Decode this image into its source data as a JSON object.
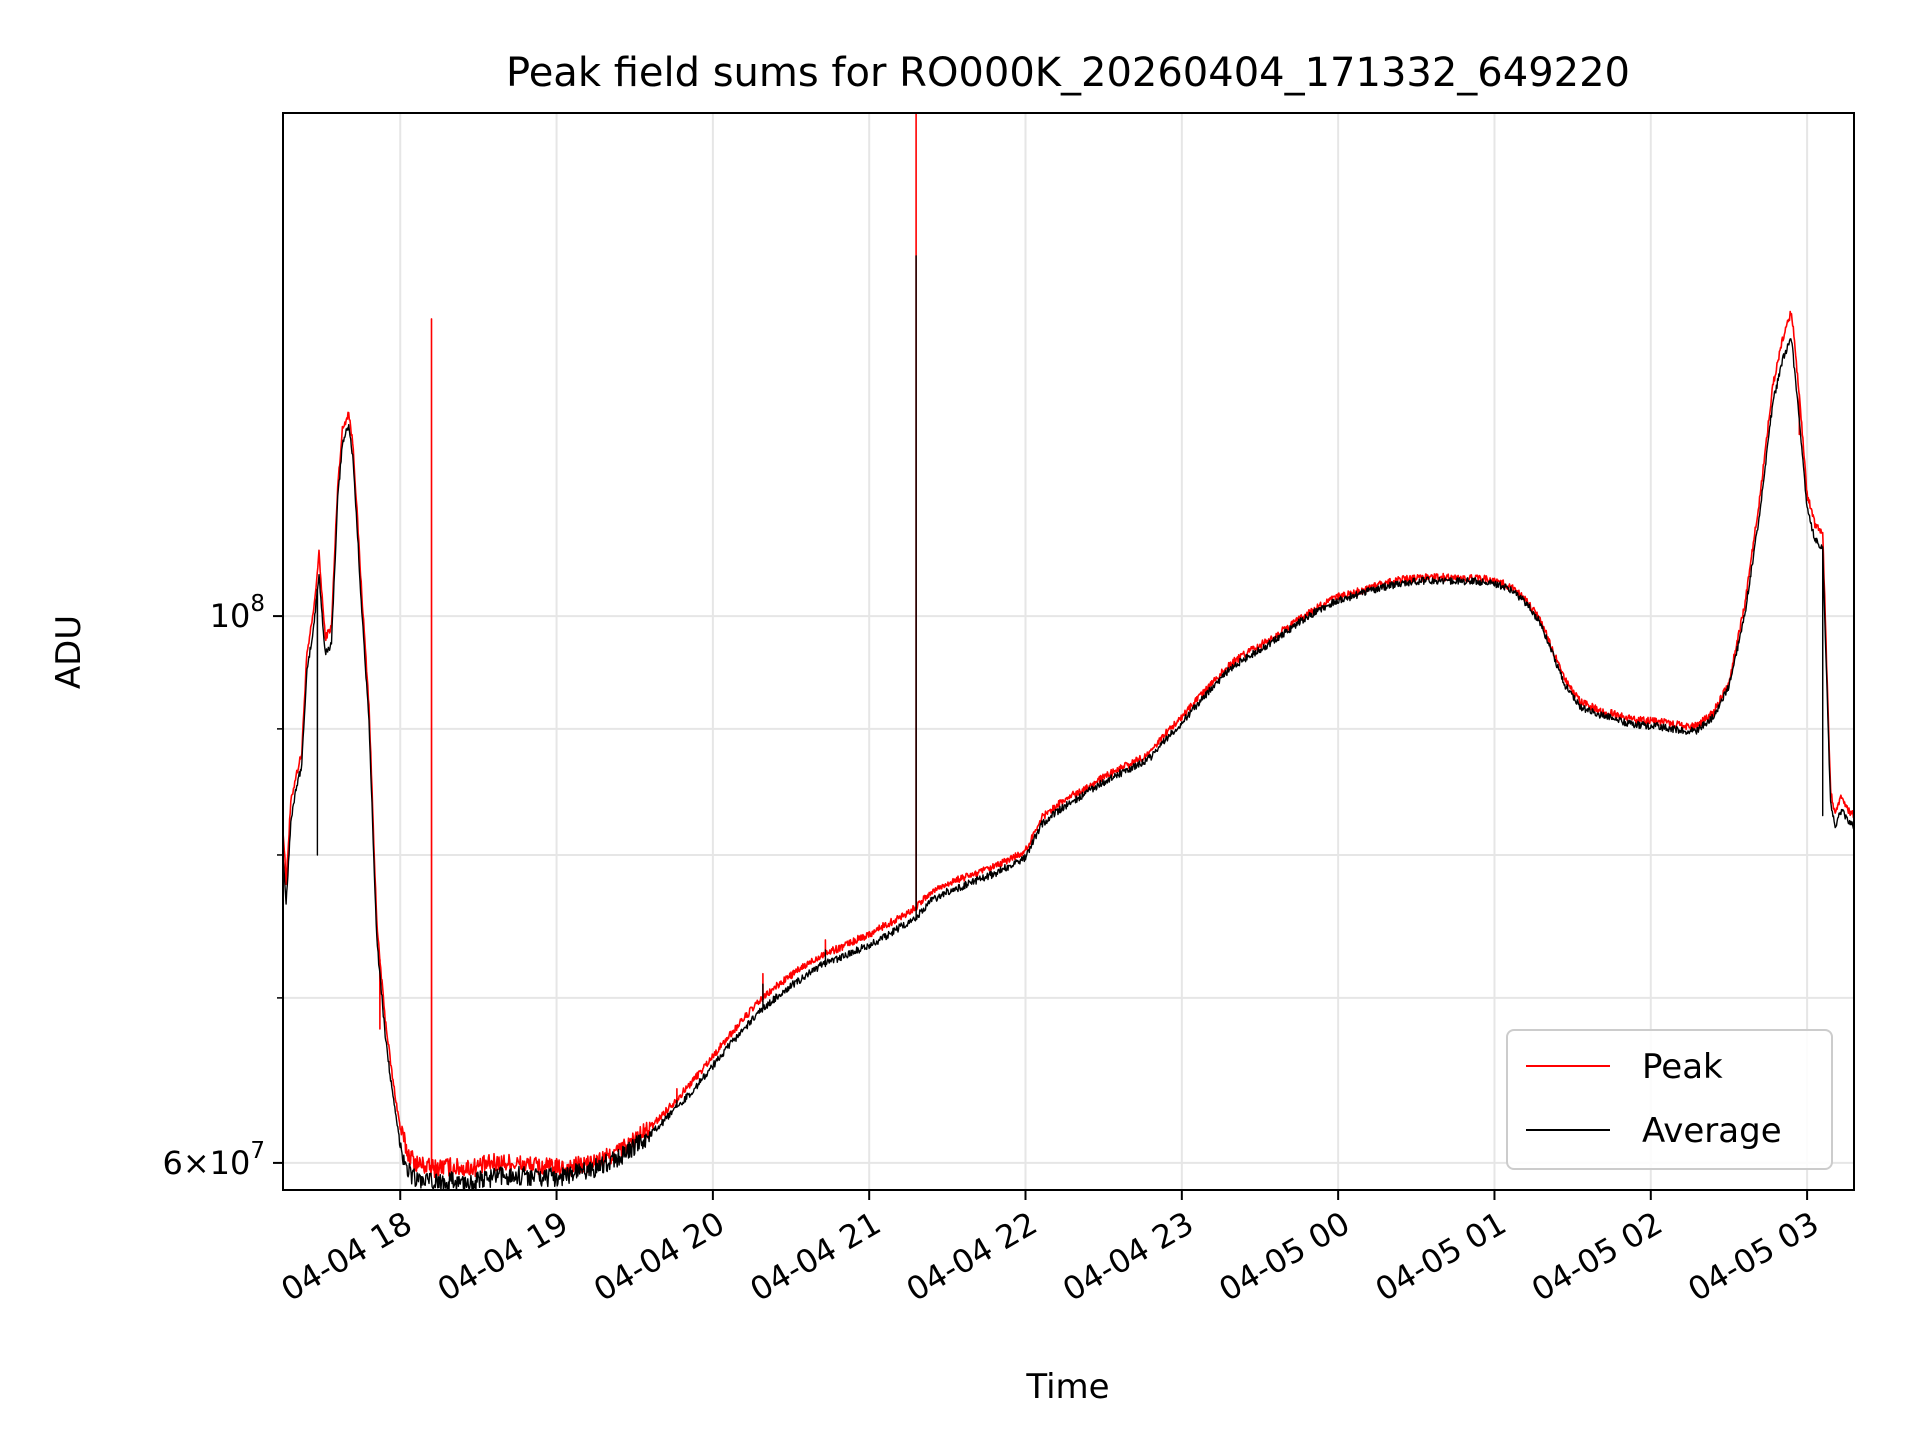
{
  "chart_data": {
    "type": "line",
    "title": "Peak field sums for RO000K_20260404_171332_649220",
    "xlabel": "Time",
    "ylabel": "ADU",
    "yscale": "log",
    "xlim": [
      17.25,
      27.3
    ],
    "ylim": [
      58500000,
      160000000
    ],
    "grid": true,
    "legend_position": "lower-right",
    "x_unit": "hours since 2026-04-04 00:00",
    "x_ticks": [
      {
        "value": 18,
        "label": "04-04 18"
      },
      {
        "value": 19,
        "label": "04-04 19"
      },
      {
        "value": 20,
        "label": "04-04 20"
      },
      {
        "value": 21,
        "label": "04-04 21"
      },
      {
        "value": 22,
        "label": "04-04 22"
      },
      {
        "value": 23,
        "label": "04-04 23"
      },
      {
        "value": 24,
        "label": "04-05 00"
      },
      {
        "value": 25,
        "label": "04-05 01"
      },
      {
        "value": 26,
        "label": "04-05 02"
      },
      {
        "value": 27,
        "label": "04-05 03"
      }
    ],
    "y_major_ticks": [
      {
        "value": 100000000,
        "base": "10",
        "exp": "8"
      },
      {
        "value": 60000000,
        "mantissa": "6",
        "base": "10",
        "exp": "7"
      }
    ],
    "y_minor_gridlines": [
      70000000,
      80000000,
      90000000,
      200000000
    ],
    "series": [
      {
        "name": "Peak",
        "color": "#ff0000",
        "points": [
          [
            17.25,
            82000000
          ],
          [
            17.27,
            78000000
          ],
          [
            17.3,
            84000000
          ],
          [
            17.33,
            86000000
          ],
          [
            17.37,
            88000000
          ],
          [
            17.4,
            96000000
          ],
          [
            17.45,
            101000000
          ],
          [
            17.48,
            106000000
          ],
          [
            17.52,
            98000000
          ],
          [
            17.56,
            99000000
          ],
          [
            17.6,
            113000000
          ],
          [
            17.63,
            119000000
          ],
          [
            17.67,
            121000000
          ],
          [
            17.7,
            117000000
          ],
          [
            17.75,
            103000000
          ],
          [
            17.8,
            92000000
          ],
          [
            17.85,
            75000000
          ],
          [
            17.9,
            69000000
          ],
          [
            17.95,
            65000000
          ],
          [
            18.0,
            62000000
          ],
          [
            18.05,
            60500000
          ],
          [
            18.1,
            60000000
          ],
          [
            18.2,
            59700000
          ],
          [
            18.3,
            59800000
          ],
          [
            18.4,
            59700000
          ],
          [
            18.5,
            59800000
          ],
          [
            18.6,
            60000000
          ],
          [
            18.7,
            60000000
          ],
          [
            18.8,
            59900000
          ],
          [
            18.9,
            59800000
          ],
          [
            19.0,
            59700000
          ],
          [
            19.1,
            59800000
          ],
          [
            19.2,
            59900000
          ],
          [
            19.3,
            60200000
          ],
          [
            19.4,
            60700000
          ],
          [
            19.5,
            61300000
          ],
          [
            19.6,
            62000000
          ],
          [
            19.7,
            63000000
          ],
          [
            19.8,
            64000000
          ],
          [
            19.9,
            65100000
          ],
          [
            20.0,
            66300000
          ],
          [
            20.1,
            67500000
          ],
          [
            20.2,
            68700000
          ],
          [
            20.3,
            69800000
          ],
          [
            20.4,
            70700000
          ],
          [
            20.5,
            71500000
          ],
          [
            20.6,
            72200000
          ],
          [
            20.7,
            72900000
          ],
          [
            20.8,
            73300000
          ],
          [
            20.9,
            73800000
          ],
          [
            21.0,
            74300000
          ],
          [
            21.1,
            74900000
          ],
          [
            21.2,
            75500000
          ],
          [
            21.3,
            76200000
          ],
          [
            21.4,
            77300000
          ],
          [
            21.5,
            77900000
          ],
          [
            21.6,
            78300000
          ],
          [
            21.7,
            78700000
          ],
          [
            21.8,
            79100000
          ],
          [
            21.9,
            79700000
          ],
          [
            22.0,
            80300000
          ],
          [
            22.1,
            82800000
          ],
          [
            22.2,
            83800000
          ],
          [
            22.3,
            84600000
          ],
          [
            22.4,
            85300000
          ],
          [
            22.5,
            86000000
          ],
          [
            22.6,
            86700000
          ],
          [
            22.7,
            87300000
          ],
          [
            22.8,
            88000000
          ],
          [
            22.9,
            89700000
          ],
          [
            23.0,
            91000000
          ],
          [
            23.1,
            92500000
          ],
          [
            23.2,
            94000000
          ],
          [
            23.3,
            95500000
          ],
          [
            23.4,
            96500000
          ],
          [
            23.5,
            97300000
          ],
          [
            23.6,
            98200000
          ],
          [
            23.7,
            99200000
          ],
          [
            23.8,
            100200000
          ],
          [
            23.9,
            101100000
          ],
          [
            24.0,
            101800000
          ],
          [
            24.1,
            102200000
          ],
          [
            24.2,
            102700000
          ],
          [
            24.3,
            103100000
          ],
          [
            24.4,
            103500000
          ],
          [
            24.5,
            103600000
          ],
          [
            24.6,
            103700000
          ],
          [
            24.7,
            103700000
          ],
          [
            24.8,
            103600000
          ],
          [
            24.9,
            103600000
          ],
          [
            25.0,
            103400000
          ],
          [
            25.1,
            102800000
          ],
          [
            25.2,
            101600000
          ],
          [
            25.3,
            99500000
          ],
          [
            25.35,
            97600000
          ],
          [
            25.45,
            94200000
          ],
          [
            25.55,
            92300000
          ],
          [
            25.65,
            91700000
          ],
          [
            25.75,
            91300000
          ],
          [
            25.85,
            90900000
          ],
          [
            25.95,
            90700000
          ],
          [
            26.05,
            90600000
          ],
          [
            26.15,
            90400000
          ],
          [
            26.25,
            90200000
          ],
          [
            26.3,
            90300000
          ],
          [
            26.4,
            91400000
          ],
          [
            26.5,
            94000000
          ],
          [
            26.6,
            101000000
          ],
          [
            26.7,
            112000000
          ],
          [
            26.78,
            124000000
          ],
          [
            26.85,
            130000000
          ],
          [
            26.9,
            133000000
          ],
          [
            26.95,
            123000000
          ],
          [
            27.0,
            112000000
          ],
          [
            27.05,
            109000000
          ],
          [
            27.1,
            108000000
          ],
          [
            27.15,
            85000000
          ],
          [
            27.18,
            83000000
          ],
          [
            27.22,
            84500000
          ],
          [
            27.26,
            83500000
          ],
          [
            27.3,
            83000000
          ]
        ],
        "spikes": [
          [
            18.2,
            132000000
          ],
          [
            20.72,
            73900000
          ],
          [
            20.32,
            71600000
          ],
          [
            19.77,
            64300000
          ],
          [
            21.3,
            160000000
          ],
          [
            26.95,
            118500000
          ],
          [
            17.87,
            68000000
          ]
        ]
      },
      {
        "name": "Average",
        "color": "#000000",
        "points": [
          [
            17.25,
            80000000
          ],
          [
            17.27,
            76500000
          ],
          [
            17.3,
            82500000
          ],
          [
            17.33,
            85000000
          ],
          [
            17.37,
            87000000
          ],
          [
            17.4,
            94500000
          ],
          [
            17.45,
            99500000
          ],
          [
            17.48,
            104000000
          ],
          [
            17.52,
            96500000
          ],
          [
            17.56,
            97500000
          ],
          [
            17.6,
            111500000
          ],
          [
            17.63,
            117500000
          ],
          [
            17.67,
            119500000
          ],
          [
            17.7,
            115500000
          ],
          [
            17.75,
            101500000
          ],
          [
            17.8,
            90500000
          ],
          [
            17.85,
            74000000
          ],
          [
            17.9,
            68000000
          ],
          [
            17.95,
            64000000
          ],
          [
            18.0,
            61000000
          ],
          [
            18.05,
            59600000
          ],
          [
            18.1,
            59100000
          ],
          [
            18.2,
            58900000
          ],
          [
            18.3,
            59000000
          ],
          [
            18.4,
            58900000
          ],
          [
            18.5,
            59000000
          ],
          [
            18.6,
            59200000
          ],
          [
            18.7,
            59300000
          ],
          [
            18.8,
            59300000
          ],
          [
            18.9,
            59200000
          ],
          [
            19.0,
            59200000
          ],
          [
            19.1,
            59400000
          ],
          [
            19.2,
            59600000
          ],
          [
            19.3,
            59900000
          ],
          [
            19.4,
            60300000
          ],
          [
            19.5,
            60900000
          ],
          [
            19.6,
            61600000
          ],
          [
            19.7,
            62500000
          ],
          [
            19.8,
            63500000
          ],
          [
            19.9,
            64500000
          ],
          [
            20.0,
            65700000
          ],
          [
            20.1,
            66900000
          ],
          [
            20.2,
            68000000
          ],
          [
            20.3,
            69100000
          ],
          [
            20.4,
            70000000
          ],
          [
            20.5,
            70800000
          ],
          [
            20.6,
            71500000
          ],
          [
            20.7,
            72200000
          ],
          [
            20.8,
            72600000
          ],
          [
            20.9,
            73100000
          ],
          [
            21.0,
            73500000
          ],
          [
            21.1,
            74100000
          ],
          [
            21.2,
            74800000
          ],
          [
            21.3,
            75500000
          ],
          [
            21.4,
            76700000
          ],
          [
            21.5,
            77300000
          ],
          [
            21.6,
            77700000
          ],
          [
            21.7,
            78200000
          ],
          [
            21.8,
            78600000
          ],
          [
            21.9,
            79200000
          ],
          [
            22.0,
            79800000
          ],
          [
            22.1,
            82300000
          ],
          [
            22.2,
            83300000
          ],
          [
            22.3,
            84100000
          ],
          [
            22.4,
            84900000
          ],
          [
            22.5,
            85600000
          ],
          [
            22.6,
            86300000
          ],
          [
            22.7,
            86900000
          ],
          [
            22.8,
            87600000
          ],
          [
            22.9,
            89200000
          ],
          [
            23.0,
            90500000
          ],
          [
            23.1,
            92100000
          ],
          [
            23.2,
            93600000
          ],
          [
            23.3,
            95100000
          ],
          [
            23.4,
            96100000
          ],
          [
            23.5,
            96900000
          ],
          [
            23.6,
            97900000
          ],
          [
            23.7,
            98900000
          ],
          [
            23.8,
            99900000
          ],
          [
            23.9,
            100800000
          ],
          [
            24.0,
            101500000
          ],
          [
            24.1,
            101900000
          ],
          [
            24.2,
            102400000
          ],
          [
            24.3,
            102800000
          ],
          [
            24.4,
            103100000
          ],
          [
            24.5,
            103300000
          ],
          [
            24.6,
            103400000
          ],
          [
            24.7,
            103400000
          ],
          [
            24.8,
            103300000
          ],
          [
            24.9,
            103300000
          ],
          [
            25.0,
            103100000
          ],
          [
            25.1,
            102500000
          ],
          [
            25.2,
            101300000
          ],
          [
            25.3,
            99200000
          ],
          [
            25.35,
            97300000
          ],
          [
            25.45,
            93800000
          ],
          [
            25.55,
            91900000
          ],
          [
            25.65,
            91300000
          ],
          [
            25.75,
            90900000
          ],
          [
            25.85,
            90500000
          ],
          [
            25.95,
            90300000
          ],
          [
            26.05,
            90200000
          ],
          [
            26.15,
            90000000
          ],
          [
            26.25,
            89800000
          ],
          [
            26.3,
            89900000
          ],
          [
            26.4,
            91000000
          ],
          [
            26.5,
            93600000
          ],
          [
            26.6,
            100000000
          ],
          [
            26.7,
            110500000
          ],
          [
            26.78,
            122000000
          ],
          [
            26.85,
            127500000
          ],
          [
            26.9,
            129500000
          ],
          [
            26.95,
            120000000
          ],
          [
            27.0,
            110500000
          ],
          [
            27.05,
            107500000
          ],
          [
            27.1,
            106500000
          ],
          [
            27.15,
            84000000
          ],
          [
            27.18,
            82000000
          ],
          [
            27.22,
            83500000
          ],
          [
            27.26,
            82600000
          ],
          [
            27.3,
            82200000
          ]
        ],
        "spikes": [
          [
            21.3,
            140000000
          ],
          [
            20.72,
            73200000
          ],
          [
            20.32,
            70900000
          ],
          [
            19.77,
            63600000
          ],
          [
            27.1,
            83000000
          ],
          [
            17.47,
            80000000
          ]
        ]
      }
    ]
  }
}
